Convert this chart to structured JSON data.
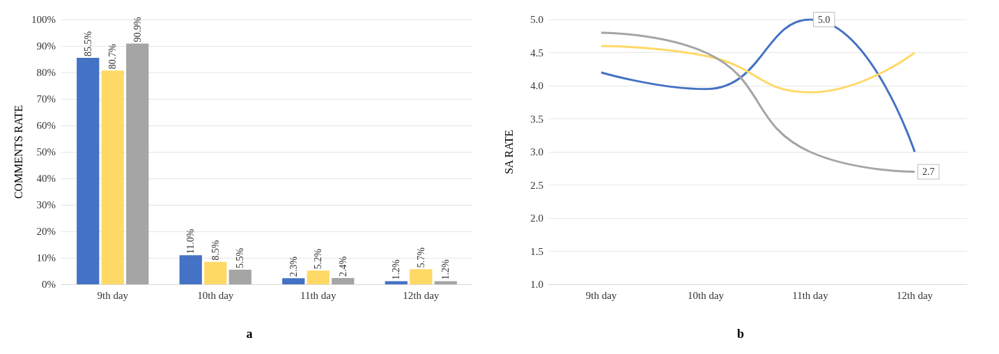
{
  "chart_data": [
    {
      "type": "bar",
      "title": "a",
      "ylabel": "COMMENTS RATE",
      "categories": [
        "9th day",
        "10th day",
        "11th day",
        "12th day"
      ],
      "series": [
        {
          "color": "#4472c4",
          "values": [
            85.5,
            11.0,
            2.3,
            1.2
          ],
          "value_labels": [
            "85.5%",
            "11.0%",
            "2.3%",
            "1.2%"
          ]
        },
        {
          "color": "#ffd966",
          "values": [
            80.7,
            8.5,
            5.2,
            5.7
          ],
          "value_labels": [
            "80.7%",
            "8.5%",
            "5.2%",
            "5.7%"
          ]
        },
        {
          "color": "#a5a5a5",
          "values": [
            90.9,
            5.5,
            2.4,
            1.2
          ],
          "value_labels": [
            "90.9%",
            "5.5%",
            "2.4%",
            "1.2%"
          ]
        }
      ],
      "ylim": [
        0,
        100
      ],
      "yticks": [
        {
          "value": 0,
          "label": "0%"
        },
        {
          "value": 10,
          "label": "10%"
        },
        {
          "value": 20,
          "label": "20%"
        },
        {
          "value": 30,
          "label": "30%"
        },
        {
          "value": 40,
          "label": "40%"
        },
        {
          "value": 50,
          "label": "50%"
        },
        {
          "value": 60,
          "label": "60%"
        },
        {
          "value": 70,
          "label": "70%"
        },
        {
          "value": 80,
          "label": "80%"
        },
        {
          "value": 90,
          "label": "90%"
        },
        {
          "value": 100,
          "label": "100%"
        }
      ],
      "grid": "y"
    },
    {
      "type": "line",
      "title": "b",
      "ylabel": "SA RATE",
      "categories": [
        "9th day",
        "10th day",
        "11th day",
        "12th day"
      ],
      "series": [
        {
          "color": "#4472c4",
          "values": [
            4.2,
            3.95,
            5.0,
            3.0
          ],
          "value_labels": [
            null,
            null,
            "5.0",
            null
          ]
        },
        {
          "color": "#ffd966",
          "values": [
            4.6,
            4.45,
            3.9,
            4.5
          ]
        },
        {
          "color": "#a5a5a5",
          "values": [
            4.8,
            4.5,
            3.0,
            2.7
          ],
          "value_labels": [
            null,
            null,
            null,
            "2.7"
          ]
        }
      ],
      "ylim": [
        1,
        5
      ],
      "yticks": [
        {
          "value": 1,
          "label": "1.0"
        },
        {
          "value": 1.5,
          "label": "1.5"
        },
        {
          "value": 2,
          "label": "2.0"
        },
        {
          "value": 2.5,
          "label": "2.5"
        },
        {
          "value": 3,
          "label": "3.0"
        },
        {
          "value": 3.5,
          "label": "3.5"
        },
        {
          "value": 4,
          "label": "4.0"
        },
        {
          "value": 4.5,
          "label": "4.5"
        },
        {
          "value": 5,
          "label": "5.0"
        }
      ],
      "grid": "y",
      "marker": "none"
    }
  ]
}
